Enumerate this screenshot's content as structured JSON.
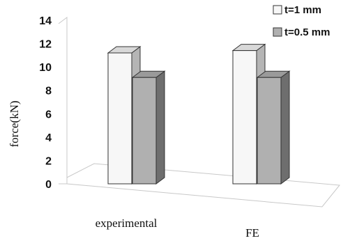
{
  "chart_data": {
    "type": "bar",
    "ylabel": "force(kN)",
    "ylim": [
      0,
      14
    ],
    "yticks": [
      "0",
      "2",
      "4",
      "6",
      "8",
      "10",
      "12",
      "14"
    ],
    "categories": [
      "experimental",
      "FE"
    ],
    "series": [
      {
        "name": "t=1 mm",
        "values": [
          11.2,
          11.4
        ],
        "color": "#f7f7f7"
      },
      {
        "name": "t=0.5 mm",
        "values": [
          9.1,
          9.1
        ],
        "color": "#b0b0b0"
      }
    ],
    "legend_position": "top-right",
    "grid": false
  }
}
